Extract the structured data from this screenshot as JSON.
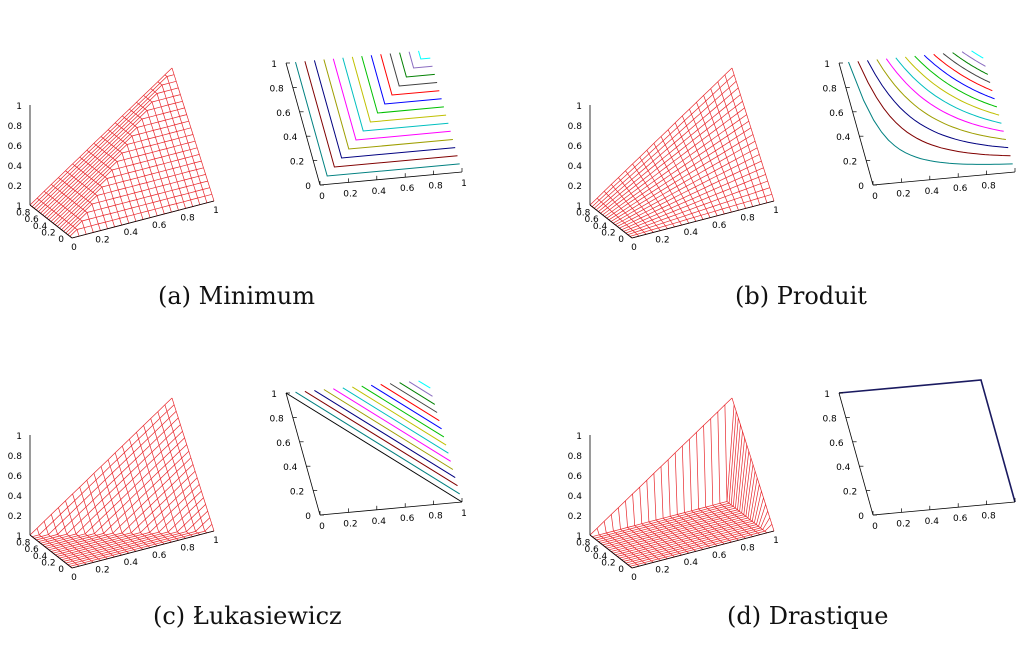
{
  "panels": [
    {
      "id": "a",
      "caption": "(a) Minimum",
      "surface_kind": "min",
      "contour_kind": "min",
      "surface_z_ticks": [
        "1",
        "0.8",
        "0.6",
        "0.4",
        "0.2"
      ],
      "surface_y_ticks": [
        "1",
        "0.8",
        "0.6",
        "0.4",
        "0.2",
        "0"
      ],
      "surface_x_ticks": [
        "0",
        "0.2",
        "0.4",
        "0.6",
        "0.8",
        "1"
      ],
      "contour_y_ticks": [
        "1",
        "0.8",
        "0.6",
        "0.4",
        "0.2",
        "0"
      ],
      "contour_x_ticks": [
        "0",
        "0.2",
        "0.4",
        "0.6",
        "0.8",
        "1"
      ]
    },
    {
      "id": "b",
      "caption": "(b) Produit",
      "surface_kind": "prod",
      "contour_kind": "prod",
      "surface_z_ticks": [
        "1",
        "0.8",
        "0.6",
        "0.4",
        "0.2"
      ],
      "surface_y_ticks": [
        "1",
        "0.8",
        "0.6",
        "0.4",
        "0.2",
        "0"
      ],
      "surface_x_ticks": [
        "0",
        "0.2",
        "0.4",
        "0.6",
        "0.8",
        "1"
      ],
      "contour_y_ticks": [
        "1",
        "0.8",
        "0.6",
        "0.4",
        "0.2",
        "0"
      ],
      "contour_x_ticks": [
        "0",
        "0.2",
        "0.4",
        "0.6",
        "0.8"
      ]
    },
    {
      "id": "c",
      "caption": "(c) Łukasiewicz",
      "surface_kind": "luk",
      "contour_kind": "luk",
      "surface_z_ticks": [
        "1",
        "0.8",
        "0.6",
        "0.4",
        "0.2"
      ],
      "surface_y_ticks": [
        "1",
        "0.8",
        "0.6",
        "0.4",
        "0.2",
        "0"
      ],
      "surface_x_ticks": [
        "0",
        "0.2",
        "0.4",
        "0.6",
        "0.8",
        "1"
      ],
      "contour_y_ticks": [
        "1",
        "0.8",
        "0.6",
        "0.4",
        "0.2",
        "0"
      ],
      "contour_x_ticks": [
        "0",
        "0.2",
        "0.4",
        "0.6",
        "0.8",
        "1"
      ]
    },
    {
      "id": "d",
      "caption": "(d) Drastique",
      "surface_kind": "drastic",
      "contour_kind": "drastic",
      "surface_z_ticks": [
        "1",
        "0.8",
        "0.6",
        "0.4",
        "0.2"
      ],
      "surface_y_ticks": [
        "1",
        "0.8",
        "0.6",
        "0.4",
        "0.2",
        "0"
      ],
      "surface_x_ticks": [
        "0",
        "0.2",
        "0.4",
        "0.6",
        "0.8",
        "1"
      ],
      "contour_y_ticks": [
        "1",
        "0.8",
        "0.6",
        "0.4",
        "0.2",
        "0"
      ],
      "contour_x_ticks": [
        "0",
        "0.2",
        "0.4",
        "0.6",
        "0.8"
      ]
    }
  ],
  "colors": {
    "mesh": "#e8262b",
    "axis": "#000000",
    "contour_palette": [
      "#008080",
      "#800000",
      "#000080",
      "#9e9e00",
      "#ff00ff",
      "#00bfbf",
      "#c0c000",
      "#00c000",
      "#0000ff",
      "#ff0000",
      "#404040",
      "#008000",
      "#8a6cc0",
      "#00ffff",
      "#7f7f7f"
    ]
  }
}
